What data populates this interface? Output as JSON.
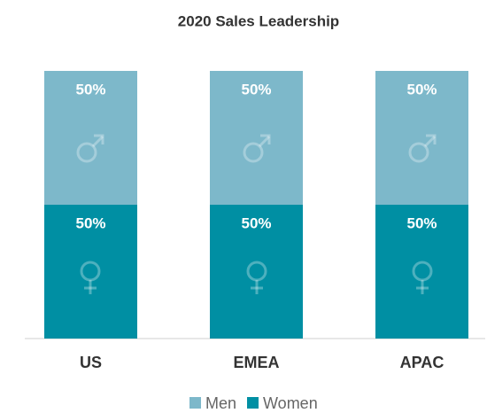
{
  "chart_data": {
    "type": "stacked_bar",
    "title": "2020 Sales Leadership",
    "categories": [
      "US",
      "EMEA",
      "APAC"
    ],
    "series": [
      {
        "name": "Men",
        "color": "#7db8ca",
        "values": [
          50,
          50,
          50
        ],
        "value_labels": [
          "50%",
          "50%",
          "50%"
        ]
      },
      {
        "name": "Women",
        "color": "#008fa3",
        "values": [
          50,
          50,
          50
        ],
        "value_labels": [
          "50%",
          "50%",
          "50%"
        ]
      }
    ],
    "ylim": [
      0,
      100
    ],
    "legend": "bottom"
  }
}
